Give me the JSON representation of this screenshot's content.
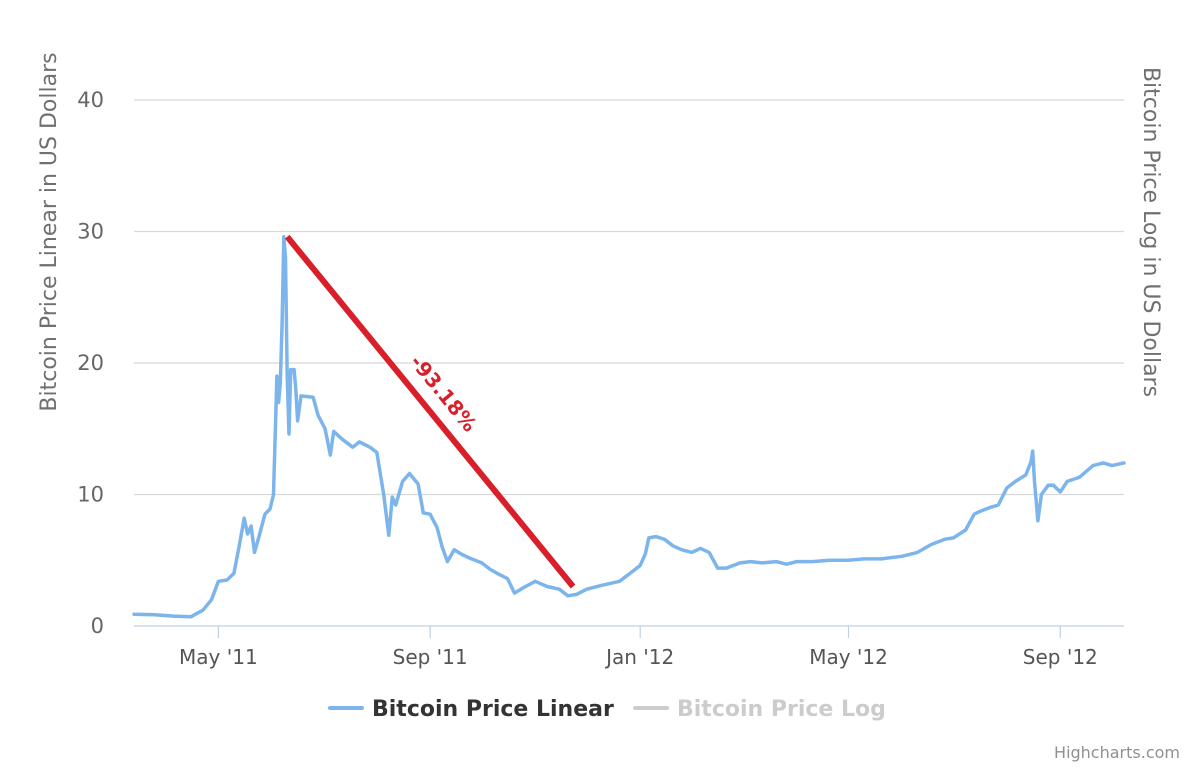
{
  "chart_data": {
    "type": "line",
    "y_axis_left": {
      "title": "Bitcoin Price Linear in US Dollars",
      "ticks": [
        0,
        10,
        20,
        30,
        40
      ],
      "range": [
        0,
        40
      ]
    },
    "y_axis_right": {
      "title": "Bitcoin Price Log in US Dollars"
    },
    "x_axis": {
      "ticks": [
        {
          "date": "2011-05-01",
          "label": "May '11"
        },
        {
          "date": "2011-09-01",
          "label": "Sep '11"
        },
        {
          "date": "2012-01-01",
          "label": "Jan '12"
        },
        {
          "date": "2012-05-01",
          "label": "May '12"
        },
        {
          "date": "2012-09-01",
          "label": "Sep '12"
        }
      ],
      "range": [
        "2011-03-13",
        "2012-10-08"
      ]
    },
    "grid": true,
    "legend_position": "bottom-center",
    "series": [
      {
        "name": "Bitcoin Price Linear",
        "color": "#7cb5ec",
        "visible": true,
        "points": [
          [
            "2011-03-13",
            0.9
          ],
          [
            "2011-03-25",
            0.85
          ],
          [
            "2011-04-05",
            0.75
          ],
          [
            "2011-04-15",
            0.7
          ],
          [
            "2011-04-22",
            1.2
          ],
          [
            "2011-04-27",
            2.0
          ],
          [
            "2011-05-01",
            3.4
          ],
          [
            "2011-05-06",
            3.5
          ],
          [
            "2011-05-10",
            4.0
          ],
          [
            "2011-05-13",
            6.0
          ],
          [
            "2011-05-16",
            8.2
          ],
          [
            "2011-05-18",
            7.0
          ],
          [
            "2011-05-20",
            7.6
          ],
          [
            "2011-05-22",
            5.6
          ],
          [
            "2011-05-25",
            7.0
          ],
          [
            "2011-05-28",
            8.5
          ],
          [
            "2011-05-31",
            8.9
          ],
          [
            "2011-06-02",
            10.0
          ],
          [
            "2011-06-04",
            19.0
          ],
          [
            "2011-06-05",
            17.0
          ],
          [
            "2011-06-06",
            18.5
          ],
          [
            "2011-06-07",
            23.0
          ],
          [
            "2011-06-08",
            29.6
          ],
          [
            "2011-06-09",
            28.0
          ],
          [
            "2011-06-10",
            19.0
          ],
          [
            "2011-06-11",
            14.6
          ],
          [
            "2011-06-12",
            19.5
          ],
          [
            "2011-06-14",
            19.5
          ],
          [
            "2011-06-15",
            18.0
          ],
          [
            "2011-06-16",
            15.6
          ],
          [
            "2011-06-18",
            17.5
          ],
          [
            "2011-06-25",
            17.4
          ],
          [
            "2011-06-28",
            16.0
          ],
          [
            "2011-07-02",
            15.0
          ],
          [
            "2011-07-05",
            13.0
          ],
          [
            "2011-07-07",
            14.8
          ],
          [
            "2011-07-12",
            14.2
          ],
          [
            "2011-07-18",
            13.6
          ],
          [
            "2011-07-22",
            14.0
          ],
          [
            "2011-07-28",
            13.6
          ],
          [
            "2011-08-01",
            13.2
          ],
          [
            "2011-08-05",
            10.0
          ],
          [
            "2011-08-08",
            6.9
          ],
          [
            "2011-08-10",
            9.8
          ],
          [
            "2011-08-12",
            9.2
          ],
          [
            "2011-08-16",
            11.0
          ],
          [
            "2011-08-20",
            11.6
          ],
          [
            "2011-08-25",
            10.8
          ],
          [
            "2011-08-28",
            8.6
          ],
          [
            "2011-09-01",
            8.5
          ],
          [
            "2011-09-05",
            7.5
          ],
          [
            "2011-09-08",
            6.0
          ],
          [
            "2011-09-11",
            4.9
          ],
          [
            "2011-09-15",
            5.8
          ],
          [
            "2011-09-20",
            5.4
          ],
          [
            "2011-09-25",
            5.1
          ],
          [
            "2011-10-01",
            4.8
          ],
          [
            "2011-10-06",
            4.3
          ],
          [
            "2011-10-10",
            4.0
          ],
          [
            "2011-10-16",
            3.6
          ],
          [
            "2011-10-20",
            2.5
          ],
          [
            "2011-10-25",
            2.9
          ],
          [
            "2011-11-01",
            3.4
          ],
          [
            "2011-11-08",
            3.0
          ],
          [
            "2011-11-15",
            2.8
          ],
          [
            "2011-11-20",
            2.3
          ],
          [
            "2011-11-25",
            2.4
          ],
          [
            "2011-12-01",
            2.8
          ],
          [
            "2011-12-10",
            3.1
          ],
          [
            "2011-12-20",
            3.4
          ],
          [
            "2011-12-27",
            4.1
          ],
          [
            "2012-01-01",
            4.6
          ],
          [
            "2012-01-04",
            5.5
          ],
          [
            "2012-01-06",
            6.7
          ],
          [
            "2012-01-10",
            6.8
          ],
          [
            "2012-01-15",
            6.6
          ],
          [
            "2012-01-20",
            6.1
          ],
          [
            "2012-01-25",
            5.8
          ],
          [
            "2012-01-31",
            5.6
          ],
          [
            "2012-02-05",
            5.9
          ],
          [
            "2012-02-10",
            5.6
          ],
          [
            "2012-02-15",
            4.4
          ],
          [
            "2012-02-20",
            4.4
          ],
          [
            "2012-02-28",
            4.8
          ],
          [
            "2012-03-05",
            4.9
          ],
          [
            "2012-03-12",
            4.8
          ],
          [
            "2012-03-20",
            4.9
          ],
          [
            "2012-03-26",
            4.7
          ],
          [
            "2012-04-01",
            4.9
          ],
          [
            "2012-04-10",
            4.9
          ],
          [
            "2012-04-20",
            5.0
          ],
          [
            "2012-05-01",
            5.0
          ],
          [
            "2012-05-10",
            5.1
          ],
          [
            "2012-05-20",
            5.1
          ],
          [
            "2012-06-01",
            5.3
          ],
          [
            "2012-06-10",
            5.6
          ],
          [
            "2012-06-18",
            6.2
          ],
          [
            "2012-06-26",
            6.6
          ],
          [
            "2012-07-01",
            6.7
          ],
          [
            "2012-07-08",
            7.3
          ],
          [
            "2012-07-13",
            8.5
          ],
          [
            "2012-07-16",
            8.7
          ],
          [
            "2012-07-22",
            9.0
          ],
          [
            "2012-07-27",
            9.2
          ],
          [
            "2012-08-01",
            10.5
          ],
          [
            "2012-08-06",
            11.0
          ],
          [
            "2012-08-12",
            11.5
          ],
          [
            "2012-08-15",
            12.5
          ],
          [
            "2012-08-16",
            13.3
          ],
          [
            "2012-08-17",
            11.0
          ],
          [
            "2012-08-19",
            8.0
          ],
          [
            "2012-08-21",
            10.0
          ],
          [
            "2012-08-25",
            10.7
          ],
          [
            "2012-08-28",
            10.7
          ],
          [
            "2012-09-01",
            10.2
          ],
          [
            "2012-09-05",
            11.0
          ],
          [
            "2012-09-12",
            11.3
          ],
          [
            "2012-09-20",
            12.2
          ],
          [
            "2012-09-26",
            12.4
          ],
          [
            "2012-10-01",
            12.2
          ],
          [
            "2012-10-08",
            12.4
          ]
        ]
      },
      {
        "name": "Bitcoin Price Log",
        "color": "#cccccc",
        "visible": false,
        "points": []
      }
    ],
    "annotation": {
      "label": "-93.18%",
      "color": "#d9202a",
      "from": [
        "2011-06-10",
        29.6
      ],
      "to": [
        "2011-11-23",
        3.0
      ]
    },
    "credits": "Highcharts.com"
  }
}
